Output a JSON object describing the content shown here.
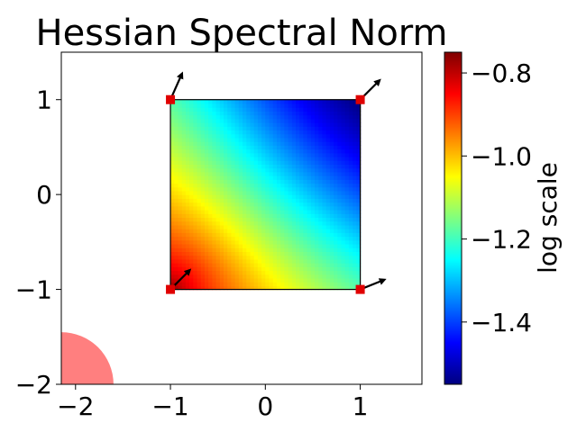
{
  "chart_data": {
    "type": "heatmap",
    "title": "Hessian Spectral Norm",
    "xlabel": "",
    "ylabel": "",
    "xlim": [
      -2.15,
      1.65
    ],
    "ylim": [
      -2.0,
      1.5
    ],
    "xticks": [
      -2,
      -1,
      0,
      1
    ],
    "xtick_labels": [
      "−2",
      "−1",
      "0",
      "1"
    ],
    "yticks": [
      -2,
      -1,
      0,
      1
    ],
    "ytick_labels": [
      "−2",
      "−1",
      "0",
      "1"
    ],
    "grid": false,
    "heatmap_region": {
      "x": [
        -1,
        1
      ],
      "y": [
        -1,
        1
      ]
    },
    "colormap": "jet",
    "colorbar": {
      "label": "log scale",
      "range": [
        -1.55,
        -0.75
      ],
      "ticks": [
        -1.4,
        -1.2,
        -1.0,
        -0.8
      ],
      "tick_labels": [
        "−1.4",
        "−1.2",
        "−1.0",
        "−0.8"
      ]
    },
    "corner_value_samples": [
      {
        "x": -1,
        "y": -1,
        "value": -0.75
      },
      {
        "x": 1,
        "y": -1,
        "value": -1.3
      },
      {
        "x": -1,
        "y": 1,
        "value": -1.3
      },
      {
        "x": 1,
        "y": 1,
        "value": -1.55
      }
    ],
    "markers": [
      {
        "x": -1,
        "y": 1,
        "color": "#e00000"
      },
      {
        "x": 1,
        "y": 1,
        "color": "#e00000"
      },
      {
        "x": -1,
        "y": -1,
        "color": "#e00000"
      },
      {
        "x": 1,
        "y": -1,
        "color": "#e00000"
      }
    ],
    "arrows": [
      {
        "x": -1,
        "y": 1,
        "dx": 0.12,
        "dy": 0.27
      },
      {
        "x": 1,
        "y": 1,
        "dx": 0.2,
        "dy": 0.2
      },
      {
        "x": -1,
        "y": -1,
        "dx": 0.2,
        "dy": 0.2
      },
      {
        "x": 1,
        "y": -1,
        "dx": 0.25,
        "dy": 0.1
      }
    ],
    "circle_region": {
      "center": [
        -2.15,
        -2.0
      ],
      "radius": 0.55,
      "color": "#ff0000",
      "opacity": 0.5
    }
  }
}
